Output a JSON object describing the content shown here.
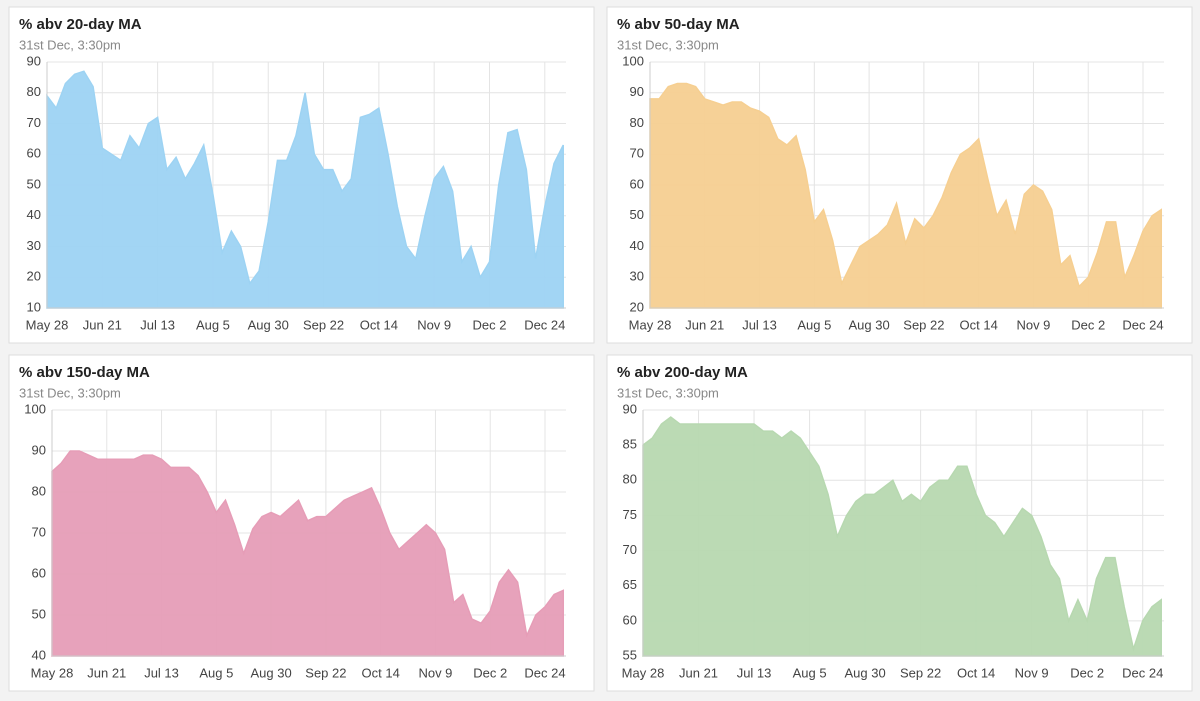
{
  "chart_data": [
    {
      "type": "area",
      "title": "% abv 20-day MA",
      "subtitle": "31st Dec, 3:30pm",
      "color": "#9dd3f3",
      "grid": true,
      "categories": [
        "May 28",
        null,
        null,
        null,
        null,
        null,
        "Jun 21",
        null,
        null,
        null,
        null,
        null,
        "Jul 13",
        null,
        null,
        null,
        null,
        null,
        "Aug 5",
        null,
        null,
        null,
        null,
        null,
        "Aug 30",
        null,
        null,
        null,
        null,
        null,
        "Sep 22",
        null,
        null,
        null,
        null,
        null,
        "Oct 14",
        null,
        null,
        null,
        null,
        null,
        "Nov 9",
        null,
        null,
        null,
        null,
        null,
        "Dec 2",
        null,
        null,
        null,
        null,
        null,
        "Dec 24",
        null,
        null
      ],
      "values": [
        79,
        75,
        83,
        86,
        87,
        82,
        62,
        60,
        58,
        66,
        62,
        70,
        72,
        55,
        59,
        52,
        57,
        63,
        47,
        28,
        35,
        30,
        18,
        22,
        38,
        58,
        58,
        66,
        80,
        60,
        55,
        55,
        48,
        52,
        72,
        73,
        75,
        60,
        43,
        30,
        26,
        40,
        52,
        56,
        48,
        25,
        30,
        20,
        25,
        50,
        67,
        68,
        55,
        26,
        43,
        57,
        63
      ],
      "ylim": [
        10,
        90
      ],
      "yticks": [
        10,
        20,
        30,
        40,
        50,
        60,
        70,
        80,
        90
      ]
    },
    {
      "type": "area",
      "title": "% abv 50-day MA",
      "subtitle": "31st Dec, 3:30pm",
      "color": "#f6cf91",
      "grid": true,
      "categories": [
        "May 28",
        null,
        null,
        null,
        null,
        null,
        "Jun 21",
        null,
        null,
        null,
        null,
        null,
        "Jul 13",
        null,
        null,
        null,
        null,
        null,
        "Aug 5",
        null,
        null,
        null,
        null,
        null,
        "Aug 30",
        null,
        null,
        null,
        null,
        null,
        "Sep 22",
        null,
        null,
        null,
        null,
        null,
        "Oct 14",
        null,
        null,
        null,
        null,
        null,
        "Nov 9",
        null,
        null,
        null,
        null,
        null,
        "Dec 2",
        null,
        null,
        null,
        null,
        null,
        "Dec 24",
        null,
        null
      ],
      "values": [
        88,
        88,
        92,
        93,
        93,
        92,
        88,
        87,
        86,
        87,
        87,
        85,
        84,
        82,
        75,
        73,
        76,
        65,
        48,
        52,
        42,
        28,
        34,
        40,
        42,
        44,
        47,
        54,
        41,
        49,
        46,
        50,
        56,
        64,
        70,
        72,
        75,
        62,
        50,
        55,
        44,
        57,
        60,
        58,
        52,
        34,
        37,
        27,
        30,
        38,
        48,
        48,
        30,
        37,
        45,
        50,
        52
      ],
      "ylim": [
        20,
        100
      ],
      "yticks": [
        20,
        30,
        40,
        50,
        60,
        70,
        80,
        90,
        100
      ]
    },
    {
      "type": "area",
      "title": "% abv 150-day MA",
      "subtitle": "31st Dec, 3:30pm",
      "color": "#e69db7",
      "grid": true,
      "categories": [
        "May 28",
        null,
        null,
        null,
        null,
        null,
        "Jun 21",
        null,
        null,
        null,
        null,
        null,
        "Jul 13",
        null,
        null,
        null,
        null,
        null,
        "Aug 5",
        null,
        null,
        null,
        null,
        null,
        "Aug 30",
        null,
        null,
        null,
        null,
        null,
        "Sep 22",
        null,
        null,
        null,
        null,
        null,
        "Oct 14",
        null,
        null,
        null,
        null,
        null,
        "Nov 9",
        null,
        null,
        null,
        null,
        null,
        "Dec 2",
        null,
        null,
        null,
        null,
        null,
        "Dec 24",
        null,
        null
      ],
      "values": [
        85,
        87,
        90,
        90,
        89,
        88,
        88,
        88,
        88,
        88,
        89,
        89,
        88,
        86,
        86,
        86,
        84,
        80,
        75,
        78,
        72,
        65,
        71,
        74,
        75,
        74,
        76,
        78,
        73,
        74,
        74,
        76,
        78,
        79,
        80,
        81,
        76,
        70,
        66,
        68,
        70,
        72,
        70,
        66,
        53,
        55,
        49,
        48,
        51,
        58,
        61,
        58,
        45,
        50,
        52,
        55,
        56
      ],
      "ylim": [
        40,
        100
      ],
      "yticks": [
        40,
        50,
        60,
        70,
        80,
        90,
        100
      ]
    },
    {
      "type": "area",
      "title": "% abv 200-day MA",
      "subtitle": "31st Dec, 3:30pm",
      "color": "#b7d8b0",
      "grid": true,
      "categories": [
        "May 28",
        null,
        null,
        null,
        null,
        null,
        "Jun 21",
        null,
        null,
        null,
        null,
        null,
        "Jul 13",
        null,
        null,
        null,
        null,
        null,
        "Aug 5",
        null,
        null,
        null,
        null,
        null,
        "Aug 30",
        null,
        null,
        null,
        null,
        null,
        "Sep 22",
        null,
        null,
        null,
        null,
        null,
        "Oct 14",
        null,
        null,
        null,
        null,
        null,
        "Nov 9",
        null,
        null,
        null,
        null,
        null,
        "Dec 2",
        null,
        null,
        null,
        null,
        null,
        "Dec 24",
        null,
        null
      ],
      "values": [
        85,
        86,
        88,
        89,
        88,
        88,
        88,
        88,
        88,
        88,
        88,
        88,
        88,
        87,
        87,
        86,
        87,
        86,
        84,
        82,
        78,
        72,
        75,
        77,
        78,
        78,
        79,
        80,
        77,
        78,
        77,
        79,
        80,
        80,
        82,
        82,
        78,
        75,
        74,
        72,
        74,
        76,
        75,
        72,
        68,
        66,
        60,
        63,
        60,
        66,
        69,
        69,
        62,
        56,
        60,
        62,
        63
      ],
      "ylim": [
        55,
        90
      ],
      "yticks": [
        55,
        60,
        65,
        70,
        75,
        80,
        85,
        90
      ]
    }
  ]
}
